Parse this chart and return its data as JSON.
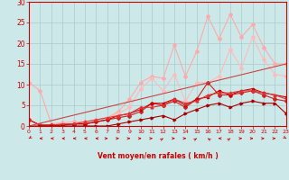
{
  "xlabel": "Vent moyen/en rafales ( km/h )",
  "xlim": [
    0,
    23
  ],
  "ylim": [
    0,
    30
  ],
  "yticks": [
    0,
    5,
    10,
    15,
    20,
    25,
    30
  ],
  "xticks": [
    0,
    1,
    2,
    3,
    4,
    5,
    6,
    7,
    8,
    9,
    10,
    11,
    12,
    13,
    14,
    15,
    16,
    17,
    18,
    19,
    20,
    21,
    22,
    23
  ],
  "background_color": "#cce8e8",
  "grid_color": "#aacccc",
  "axis_color": "#cc0000",
  "series": [
    {
      "x": [
        0,
        1,
        2,
        3,
        4,
        5,
        6,
        7,
        8,
        9,
        10,
        11,
        12,
        13,
        14,
        15,
        16,
        17,
        18,
        19,
        20,
        21,
        22,
        23
      ],
      "y": [
        10.5,
        8.5,
        0.5,
        0.8,
        1.0,
        1.0,
        1.5,
        2.0,
        3.5,
        6.5,
        10.5,
        12.0,
        11.5,
        19.5,
        12.0,
        18.0,
        26.5,
        21.0,
        27.0,
        21.5,
        24.5,
        19.0,
        15.0,
        15.0
      ],
      "color": "#ffaaaa",
      "linewidth": 0.8,
      "marker": "D",
      "markersize": 2.0
    },
    {
      "x": [
        0,
        1,
        2,
        3,
        4,
        5,
        6,
        7,
        8,
        9,
        10,
        11,
        12,
        13,
        14,
        15,
        16,
        17,
        18,
        19,
        20,
        21,
        22,
        23
      ],
      "y": [
        1.5,
        0.3,
        0.3,
        0.3,
        0.5,
        0.8,
        1.5,
        2.0,
        3.0,
        4.5,
        9.0,
        11.5,
        8.5,
        12.5,
        6.0,
        10.5,
        10.5,
        12.0,
        18.5,
        14.0,
        21.5,
        16.0,
        12.5,
        12.0
      ],
      "color": "#ffbbbb",
      "linewidth": 0.8,
      "marker": "D",
      "markersize": 2.0
    },
    {
      "x": [
        0,
        1,
        2,
        3,
        4,
        5,
        6,
        7,
        8,
        9,
        10,
        11,
        12,
        13,
        14,
        15,
        16,
        17,
        18,
        19,
        20,
        21,
        22,
        23
      ],
      "y": [
        1.5,
        0.2,
        0.2,
        0.2,
        0.5,
        0.5,
        1.0,
        1.5,
        2.0,
        2.5,
        3.5,
        5.5,
        5.0,
        6.0,
        4.5,
        6.5,
        10.5,
        7.5,
        7.5,
        8.0,
        8.5,
        7.5,
        6.5,
        6.0
      ],
      "color": "#cc2222",
      "linewidth": 0.8,
      "marker": "P",
      "markersize": 2.5
    },
    {
      "x": [
        0,
        1,
        2,
        3,
        4,
        5,
        6,
        7,
        8,
        9,
        10,
        11,
        12,
        13,
        14,
        15,
        16,
        17,
        18,
        19,
        20,
        21,
        22,
        23
      ],
      "y": [
        1.5,
        0.2,
        0.2,
        0.2,
        0.5,
        0.5,
        1.0,
        1.5,
        2.5,
        3.0,
        4.0,
        5.5,
        5.5,
        6.5,
        5.0,
        6.5,
        7.0,
        8.5,
        7.5,
        8.5,
        9.0,
        8.0,
        7.5,
        7.0
      ],
      "color": "#cc0000",
      "linewidth": 0.8,
      "marker": "s",
      "markersize": 2.0
    },
    {
      "x": [
        0,
        1,
        2,
        3,
        4,
        5,
        6,
        7,
        8,
        9,
        10,
        11,
        12,
        13,
        14,
        15,
        16,
        17,
        18,
        19,
        20,
        21,
        22,
        23
      ],
      "y": [
        1.5,
        0.2,
        0.2,
        0.5,
        0.5,
        1.0,
        1.5,
        2.0,
        2.5,
        3.0,
        4.5,
        4.5,
        5.0,
        6.5,
        5.5,
        6.0,
        7.5,
        8.0,
        8.0,
        8.5,
        8.5,
        8.0,
        7.5,
        6.5
      ],
      "color": "#dd3333",
      "linewidth": 0.8,
      "marker": "^",
      "markersize": 2.0
    },
    {
      "x": [
        0,
        1,
        2,
        3,
        4,
        5,
        6,
        7,
        8,
        9,
        10,
        11,
        12,
        13,
        14,
        15,
        16,
        17,
        18,
        19,
        20,
        21,
        22,
        23
      ],
      "y": [
        0.0,
        0.0,
        0.0,
        0.0,
        0.0,
        0.0,
        0.0,
        0.0,
        0.5,
        1.0,
        1.5,
        2.0,
        2.5,
        1.5,
        3.0,
        4.0,
        5.0,
        5.5,
        4.5,
        5.5,
        6.0,
        5.5,
        5.5,
        3.0
      ],
      "color": "#aa0000",
      "linewidth": 0.8,
      "marker": ">",
      "markersize": 2.0
    },
    {
      "x": [
        0,
        23
      ],
      "y": [
        0.0,
        15.0
      ],
      "color": "#cc4444",
      "linewidth": 0.8,
      "marker": null,
      "markersize": 0
    }
  ],
  "wind_angles": [
    225,
    270,
    270,
    270,
    270,
    270,
    270,
    90,
    90,
    90,
    90,
    90,
    45,
    90,
    90,
    45,
    315,
    270,
    45,
    90,
    90,
    90,
    90,
    135
  ]
}
